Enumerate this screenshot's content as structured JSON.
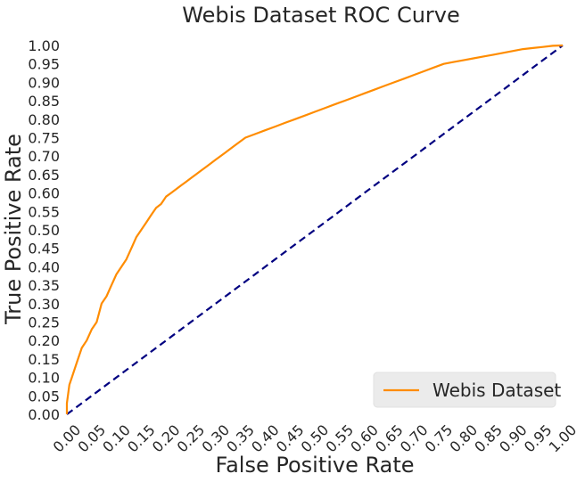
{
  "chart_data": {
    "type": "line",
    "title": "Webis Dataset ROC Curve",
    "xlabel": "False Positive Rate",
    "ylabel": "True Positive Rate",
    "xlim": [
      0,
      1
    ],
    "ylim": [
      0,
      1
    ],
    "xticks": [
      "0.00",
      "0.05",
      "0.10",
      "0.15",
      "0.20",
      "0.25",
      "0.30",
      "0.35",
      "0.40",
      "0.45",
      "0.50",
      "0.55",
      "0.60",
      "0.65",
      "0.70",
      "0.75",
      "0.80",
      "0.85",
      "0.90",
      "0.95",
      "1.00"
    ],
    "yticks": [
      "0.00",
      "0.05",
      "0.10",
      "0.15",
      "0.20",
      "0.25",
      "0.30",
      "0.35",
      "0.40",
      "0.45",
      "0.50",
      "0.55",
      "0.60",
      "0.65",
      "0.70",
      "0.75",
      "0.80",
      "0.85",
      "0.90",
      "0.95",
      "1.00"
    ],
    "grid": false,
    "legend": {
      "placement": "lower-right"
    },
    "series": [
      {
        "name": "Webis Dataset",
        "color": "#ff8c00",
        "style": "solid",
        "x": [
          0.0,
          0.0,
          0.005,
          0.01,
          0.02,
          0.03,
          0.04,
          0.05,
          0.06,
          0.07,
          0.08,
          0.09,
          0.1,
          0.11,
          0.12,
          0.13,
          0.14,
          0.15,
          0.16,
          0.17,
          0.18,
          0.19,
          0.195,
          0.2,
          0.21,
          0.22,
          0.23,
          0.24,
          0.25,
          0.26,
          0.27,
          0.28,
          0.29,
          0.3,
          0.32,
          0.34,
          0.36,
          0.38,
          0.4,
          0.42,
          0.44,
          0.46,
          0.48,
          0.5,
          0.52,
          0.54,
          0.56,
          0.58,
          0.6,
          0.62,
          0.64,
          0.66,
          0.68,
          0.7,
          0.72,
          0.74,
          0.76,
          0.78,
          0.8,
          0.82,
          0.84,
          0.86,
          0.88,
          0.9,
          0.92,
          0.94,
          0.96,
          0.98,
          1.0
        ],
        "y": [
          0.0,
          0.03,
          0.08,
          0.1,
          0.14,
          0.18,
          0.2,
          0.23,
          0.25,
          0.3,
          0.32,
          0.35,
          0.38,
          0.4,
          0.42,
          0.45,
          0.48,
          0.5,
          0.52,
          0.54,
          0.56,
          0.57,
          0.58,
          0.59,
          0.6,
          0.61,
          0.62,
          0.63,
          0.64,
          0.65,
          0.66,
          0.67,
          0.68,
          0.69,
          0.71,
          0.73,
          0.75,
          0.76,
          0.77,
          0.78,
          0.79,
          0.8,
          0.81,
          0.82,
          0.83,
          0.84,
          0.85,
          0.86,
          0.87,
          0.88,
          0.89,
          0.9,
          0.91,
          0.92,
          0.93,
          0.94,
          0.95,
          0.955,
          0.96,
          0.965,
          0.97,
          0.975,
          0.98,
          0.985,
          0.99,
          0.993,
          0.996,
          0.999,
          1.0
        ]
      },
      {
        "color": "#000080",
        "style": "dashed",
        "x": [
          0,
          1
        ],
        "y": [
          0,
          1
        ]
      }
    ]
  }
}
